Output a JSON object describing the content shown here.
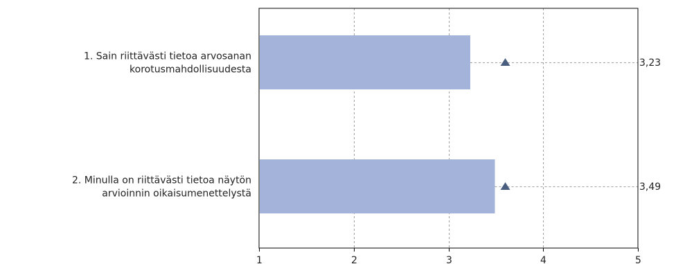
{
  "chart_data": {
    "type": "bar",
    "orientation": "horizontal",
    "categories": [
      [
        "1. Sain riittävästi tietoa arvosanan",
        "korotusmahdollisuudesta"
      ],
      [
        "2. Minulla on riittävästi tietoa näytön",
        "arvioinnin oikaisumenettelystä"
      ]
    ],
    "values": [
      3.23,
      3.49
    ],
    "value_labels": [
      "3,23",
      "3,49"
    ],
    "markers": [
      3.6,
      3.6
    ],
    "xlim": [
      1,
      5
    ],
    "xticks": [
      "1",
      "2",
      "3",
      "4",
      "5"
    ],
    "grid": true,
    "title": "",
    "xlabel": "",
    "ylabel": ""
  },
  "colors": {
    "bar": "#a3b3d9",
    "marker": "#4a5e80",
    "grid": "#a0a0a0",
    "axis": "#000000"
  }
}
